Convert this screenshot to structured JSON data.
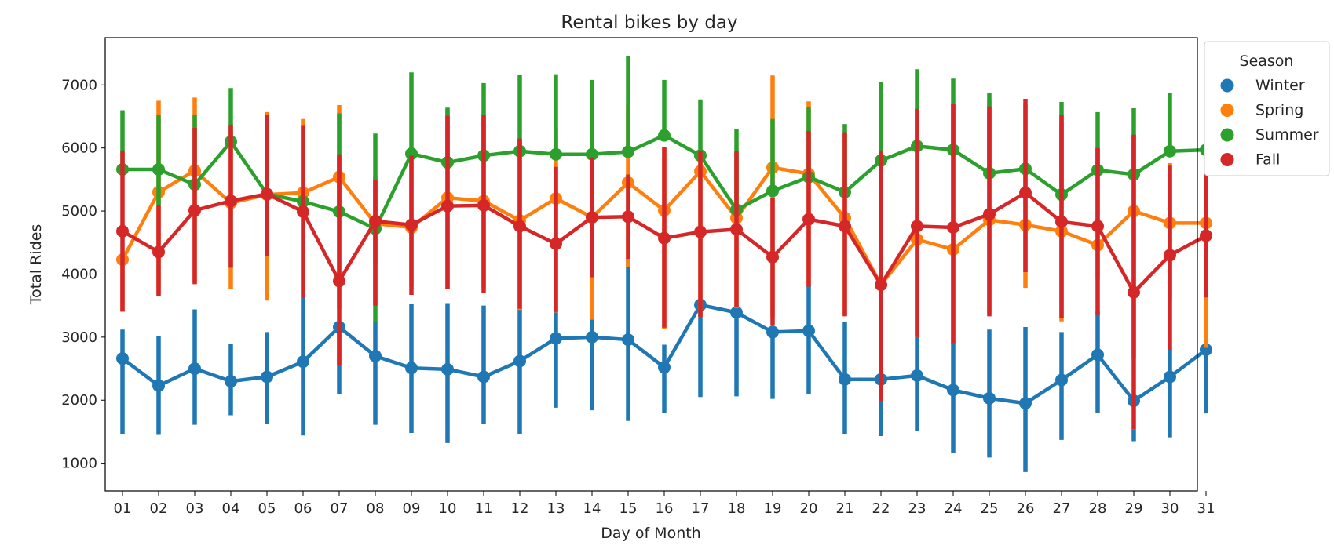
{
  "chart_data": {
    "type": "line",
    "title": "Rental bikes by day",
    "xlabel": "Day of Month",
    "ylabel": "Total Rides",
    "x": [
      "01",
      "02",
      "03",
      "04",
      "05",
      "06",
      "07",
      "08",
      "09",
      "10",
      "11",
      "12",
      "13",
      "14",
      "15",
      "16",
      "17",
      "18",
      "19",
      "20",
      "21",
      "22",
      "23",
      "24",
      "25",
      "26",
      "27",
      "28",
      "29",
      "30",
      "31"
    ],
    "ylim": [
      560,
      7750
    ],
    "yticks": [
      1000,
      2000,
      3000,
      4000,
      5000,
      6000,
      7000
    ],
    "grid": false,
    "legend": {
      "title": "Season",
      "placement": "outside-top-right"
    },
    "series": [
      {
        "name": "Winter",
        "color": "#1f77b4",
        "values": [
          2660,
          2230,
          2500,
          2300,
          2370,
          2610,
          3160,
          2700,
          2510,
          2490,
          2370,
          2620,
          2980,
          3000,
          2960,
          2520,
          3510,
          3390,
          3080,
          3100,
          2330,
          2330,
          2390,
          2160,
          2030,
          1950,
          2320,
          2720,
          1990,
          2370,
          2800
        ],
        "ci_low": [
          1460,
          1450,
          1610,
          1760,
          1630,
          1440,
          2090,
          1610,
          1480,
          1320,
          1630,
          1460,
          1880,
          1840,
          1670,
          1800,
          2050,
          2060,
          2020,
          2090,
          1460,
          1430,
          1510,
          1160,
          1090,
          860,
          1370,
          1800,
          1350,
          1410,
          1790
        ],
        "ci_high": [
          3120,
          3020,
          3440,
          2890,
          3080,
          3620,
          3220,
          3250,
          3520,
          3540,
          3500,
          3460,
          3410,
          3280,
          4250,
          2880,
          3580,
          3450,
          3130,
          3820,
          3240,
          2010,
          3000,
          2900,
          3120,
          3160,
          3080,
          3410,
          1540,
          2810,
          2880
        ]
      },
      {
        "name": "Spring",
        "color": "#ff7f0e",
        "values": [
          4230,
          5300,
          5640,
          5130,
          5260,
          5290,
          5540,
          4800,
          4740,
          5210,
          5160,
          4850,
          5200,
          4900,
          5450,
          5010,
          5630,
          4890,
          5690,
          5590,
          4890,
          3830,
          4550,
          4390,
          4860,
          4780,
          4680,
          4460,
          5000,
          4810,
          4810
        ],
        "ci_low": [
          3400,
          3680,
          3860,
          3760,
          3580,
          5020,
          3450,
          4170,
          3800,
          3770,
          3780,
          3430,
          3390,
          3280,
          4110,
          3130,
          3350,
          3460,
          3320,
          3800,
          3350,
          3820,
          3000,
          2890,
          3360,
          3780,
          3250,
          3920,
          2660,
          3570,
          2830
        ],
        "ci_high": [
          4250,
          6750,
          6800,
          6270,
          6570,
          6460,
          6680,
          5550,
          5920,
          6610,
          6500,
          6140,
          6310,
          6130,
          6680,
          6000,
          5890,
          5920,
          7150,
          6740,
          6250,
          3850,
          6620,
          6700,
          6770,
          6700,
          6420,
          6000,
          6210,
          5760,
          5610
        ]
      },
      {
        "name": "Summer",
        "color": "#2ca02c",
        "values": [
          5660,
          5660,
          5420,
          6100,
          5270,
          5150,
          4990,
          4720,
          5910,
          5770,
          5880,
          5950,
          5900,
          5900,
          5940,
          6200,
          5880,
          5020,
          5320,
          5540,
          5300,
          5800,
          6030,
          5970,
          5600,
          5670,
          5260,
          5650,
          5580,
          5950,
          5970
        ],
        "ci_low": [
          5660,
          5100,
          5440,
          6100,
          5270,
          5150,
          4990,
          3230,
          5910,
          5770,
          5880,
          5950,
          5900,
          5900,
          5940,
          6200,
          5880,
          5020,
          5320,
          5540,
          5300,
          5800,
          6030,
          5970,
          5600,
          5670,
          5260,
          5650,
          5580,
          5950,
          5970
        ],
        "ci_high": [
          6600,
          6530,
          6530,
          6950,
          5270,
          5150,
          6550,
          6230,
          7200,
          6640,
          7030,
          7160,
          7170,
          7080,
          7460,
          7080,
          6770,
          6300,
          6460,
          6650,
          6380,
          7050,
          7250,
          7100,
          6870,
          5670,
          6730,
          6570,
          6630,
          6870,
          7320
        ]
      },
      {
        "name": "Fall",
        "color": "#d62728",
        "values": [
          4680,
          4350,
          5010,
          5160,
          5270,
          4990,
          3890,
          4840,
          4780,
          5080,
          5090,
          4760,
          4480,
          4900,
          4910,
          4570,
          4670,
          4710,
          4270,
          4870,
          4760,
          3830,
          4760,
          4740,
          4950,
          5290,
          4830,
          4760,
          3710,
          4300,
          4610
        ],
        "ci_low": [
          3420,
          3650,
          3840,
          4100,
          4280,
          3620,
          2560,
          3500,
          3670,
          3760,
          3700,
          3450,
          3400,
          3950,
          4240,
          3150,
          3320,
          3470,
          3180,
          3800,
          3330,
          1990,
          3000,
          2900,
          3330,
          4030,
          3300,
          3350,
          1540,
          2800,
          3630
        ],
        "ci_high": [
          5960,
          5090,
          6320,
          6370,
          6530,
          6350,
          5900,
          5500,
          5880,
          6510,
          6520,
          6150,
          5700,
          5850,
          5580,
          6020,
          5960,
          5950,
          5200,
          6270,
          6250,
          5960,
          6620,
          6700,
          6660,
          6780,
          6530,
          6000,
          6210,
          5720,
          5610
        ]
      }
    ]
  }
}
